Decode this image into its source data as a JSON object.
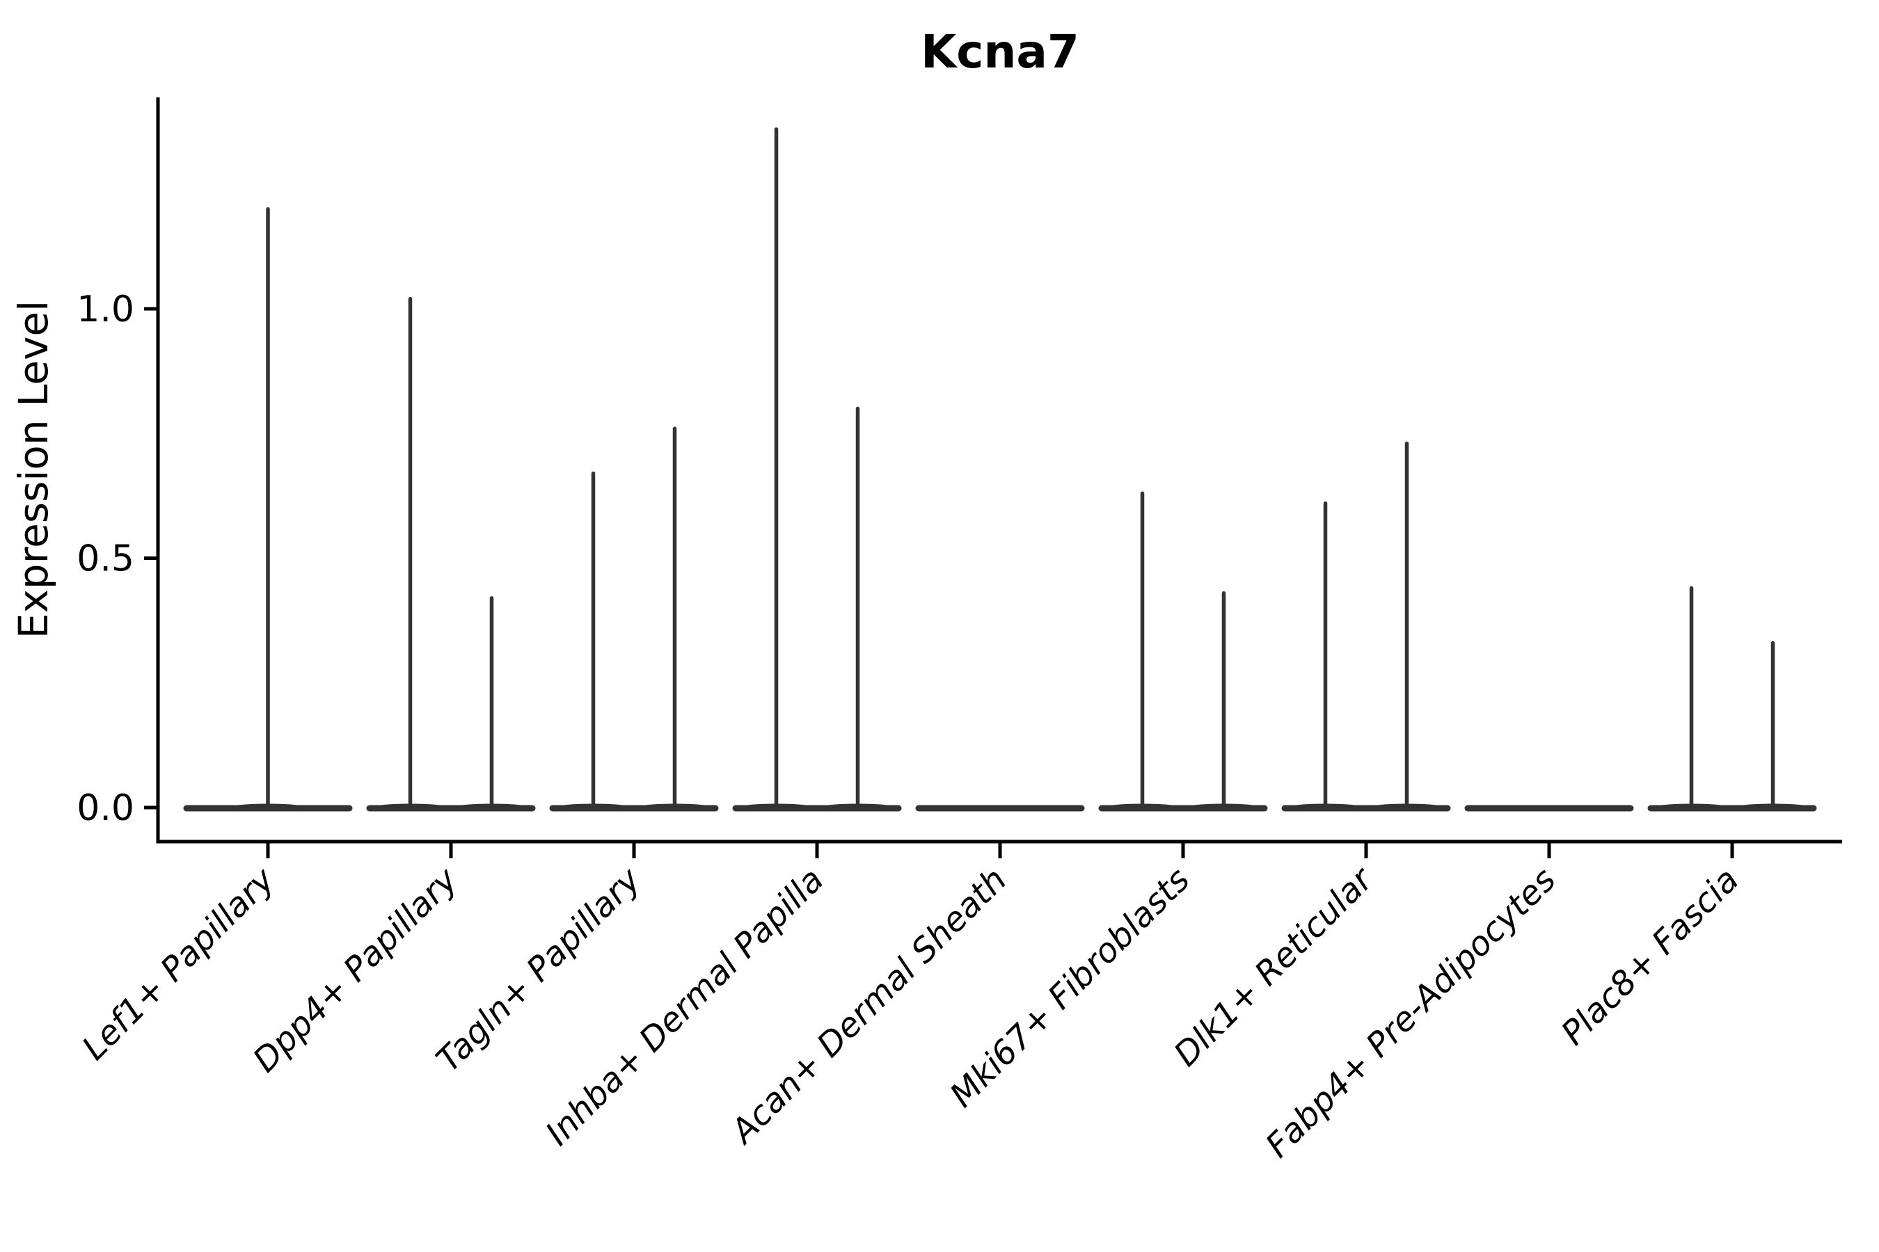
{
  "chart_data": {
    "type": "violin",
    "title": "Kcna7",
    "xlabel": "",
    "ylabel": "Expression Level",
    "ytick_labels": [
      "0.0",
      "0.5",
      "1.0"
    ],
    "ytick_values": [
      0.0,
      0.5,
      1.0
    ],
    "ylim": [
      -0.07,
      1.42
    ],
    "x_tick_rotation": 45,
    "grid": "off",
    "legend": "none",
    "categories": [
      "Lef1+ Papillary",
      "Dpp4+ Papillary",
      "Tagln+ Papillary",
      "Inhba+ Dermal Papilla",
      "Acan+ Dermal Sheath",
      "Mki67+ Fibroblasts",
      "Dlk1+ Reticular",
      "Fabp4+ Pre-Adipocytes",
      "Plac8+ Fascia"
    ],
    "violins": [
      {
        "category": "Lef1+ Papillary",
        "layout": "single",
        "spike_maxima": [
          1.2
        ]
      },
      {
        "category": "Dpp4+ Papillary",
        "layout": "pair",
        "spike_maxima": [
          1.02,
          0.42
        ]
      },
      {
        "category": "Tagln+ Papillary",
        "layout": "pair",
        "spike_maxima": [
          0.67,
          0.76
        ]
      },
      {
        "category": "Inhba+ Dermal Papilla",
        "layout": "pair",
        "spike_maxima": [
          1.36,
          0.8
        ]
      },
      {
        "category": "Acan+ Dermal Sheath",
        "layout": "flat",
        "spike_maxima": []
      },
      {
        "category": "Mki67+ Fibroblasts",
        "layout": "pair",
        "spike_maxima": [
          0.63,
          0.43
        ]
      },
      {
        "category": "Dlk1+ Reticular",
        "layout": "pair",
        "spike_maxima": [
          0.61,
          0.73
        ]
      },
      {
        "category": "Fabp4+ Pre-Adipocytes",
        "layout": "flat",
        "spike_maxima": []
      },
      {
        "category": "Plac8+ Fascia",
        "layout": "pair",
        "spike_maxima": [
          0.44,
          0.33
        ]
      }
    ],
    "colors": {
      "violin": "#333333",
      "axis": "#000000",
      "text": "#000000",
      "background": "#ffffff"
    }
  }
}
